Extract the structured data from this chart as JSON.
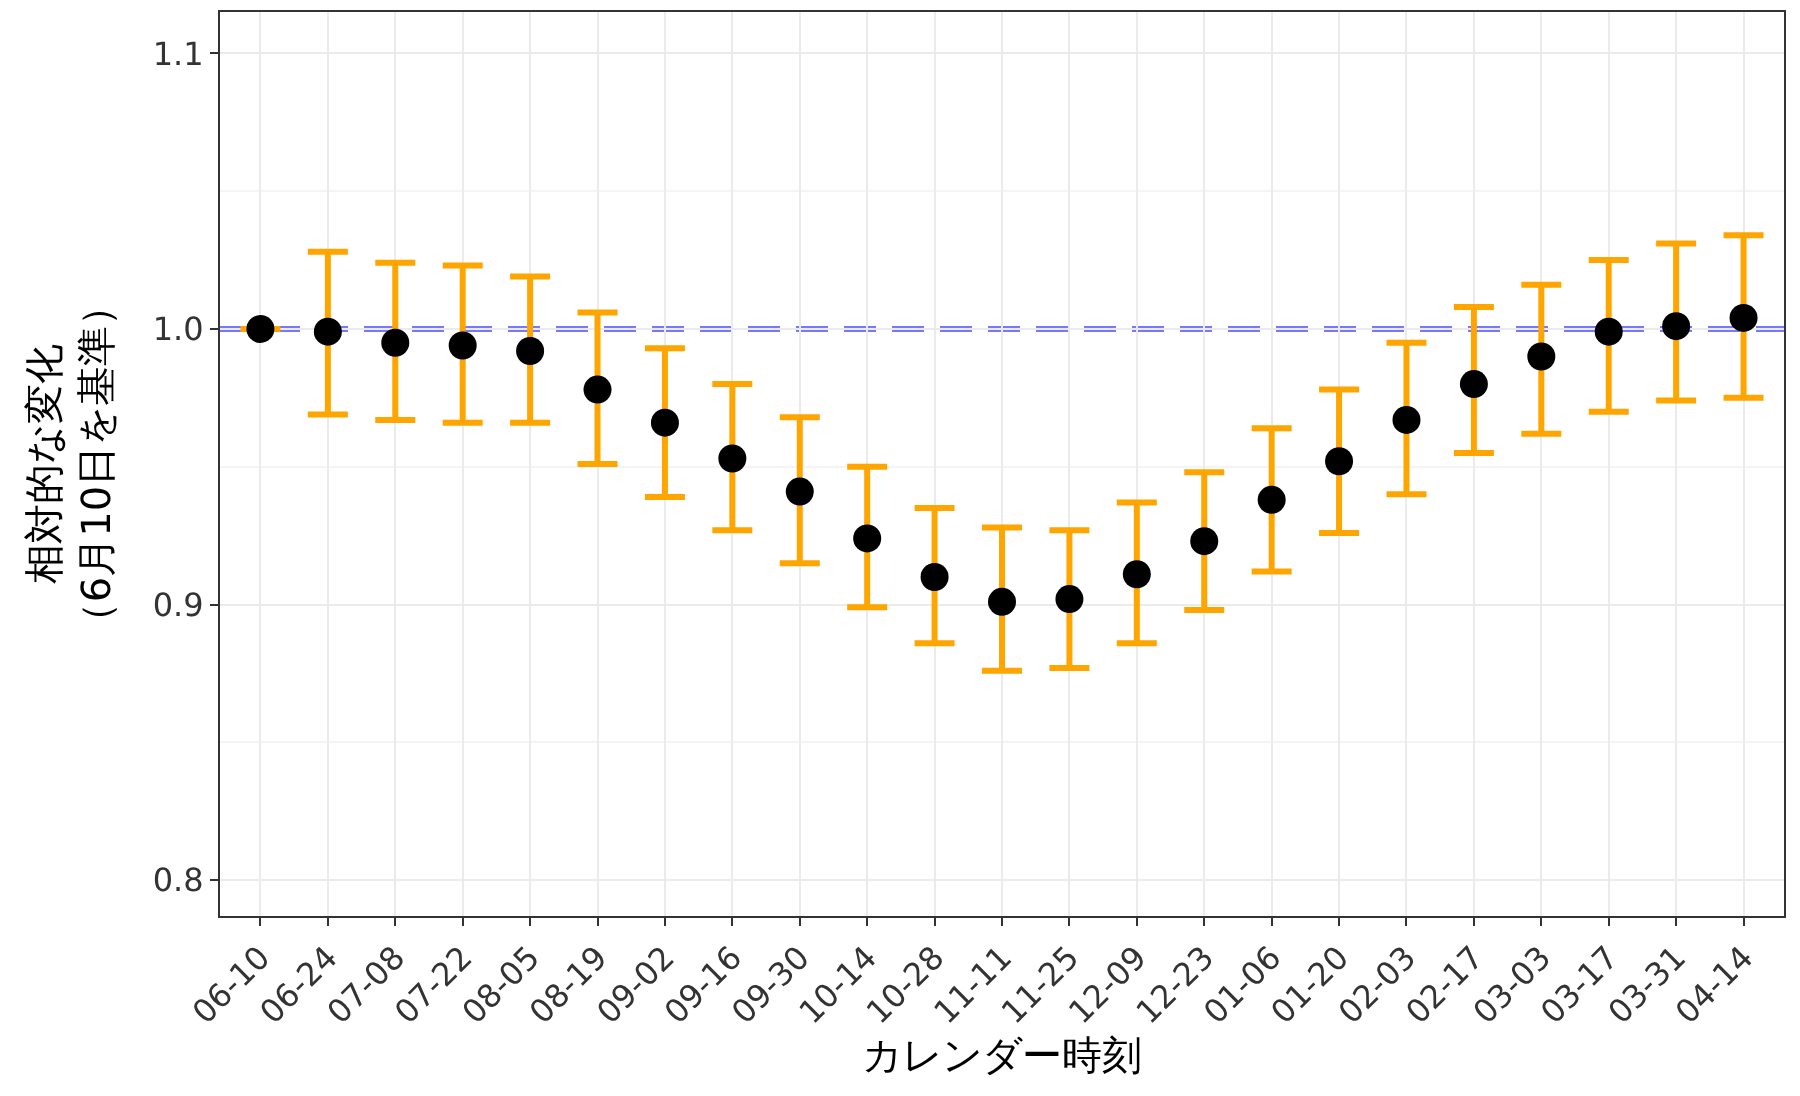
{
  "chart_data": {
    "type": "scatter",
    "xlabel": "カレンダー時刻",
    "ylabel": "相対的な変化（6月10日を基準）",
    "categories": [
      "06-10",
      "06-24",
      "07-08",
      "07-22",
      "08-05",
      "08-19",
      "09-02",
      "09-16",
      "09-30",
      "10-14",
      "10-28",
      "11-11",
      "11-25",
      "12-09",
      "12-23",
      "01-06",
      "01-20",
      "02-03",
      "02-17",
      "03-03",
      "03-17",
      "03-31",
      "04-14"
    ],
    "series": [
      {
        "color": "#000000",
        "values": [
          1.0,
          0.999,
          0.995,
          0.994,
          0.992,
          0.978,
          0.966,
          0.953,
          0.941,
          0.924,
          0.91,
          0.901,
          0.902,
          0.911,
          0.923,
          0.938,
          0.952,
          0.967,
          0.98,
          0.99,
          0.999,
          1.001,
          1.004
        ],
        "errors": [
          null,
          [
            0.969,
            1.028
          ],
          [
            0.967,
            1.024
          ],
          [
            0.966,
            1.023
          ],
          [
            0.966,
            1.019
          ],
          [
            0.951,
            1.006
          ],
          [
            0.939,
            0.993
          ],
          [
            0.927,
            0.98
          ],
          [
            0.915,
            0.968
          ],
          [
            0.899,
            0.95
          ],
          [
            0.886,
            0.935
          ],
          [
            0.876,
            0.928
          ],
          [
            0.877,
            0.927
          ],
          [
            0.886,
            0.937
          ],
          [
            0.898,
            0.948
          ],
          [
            0.912,
            0.964
          ],
          [
            0.926,
            0.978
          ],
          [
            0.94,
            0.995
          ],
          [
            0.955,
            1.008
          ],
          [
            0.962,
            1.016
          ],
          [
            0.97,
            1.025
          ],
          [
            0.974,
            1.031
          ],
          [
            0.975,
            1.034
          ]
        ]
      }
    ],
    "ylim": [
      0.787,
      1.115
    ],
    "yticks": [
      {
        "value": 0.8,
        "label": "0.8"
      },
      {
        "value": 0.9,
        "label": "0.9"
      },
      {
        "value": 1.0,
        "label": "1.0"
      },
      {
        "value": 1.1,
        "label": "1.1"
      }
    ],
    "ref_lines": [
      {
        "axis": "y",
        "value": 1.0,
        "color": "#7777ff",
        "line_style": "dashed"
      }
    ],
    "marker": "circle",
    "grid": true
  }
}
